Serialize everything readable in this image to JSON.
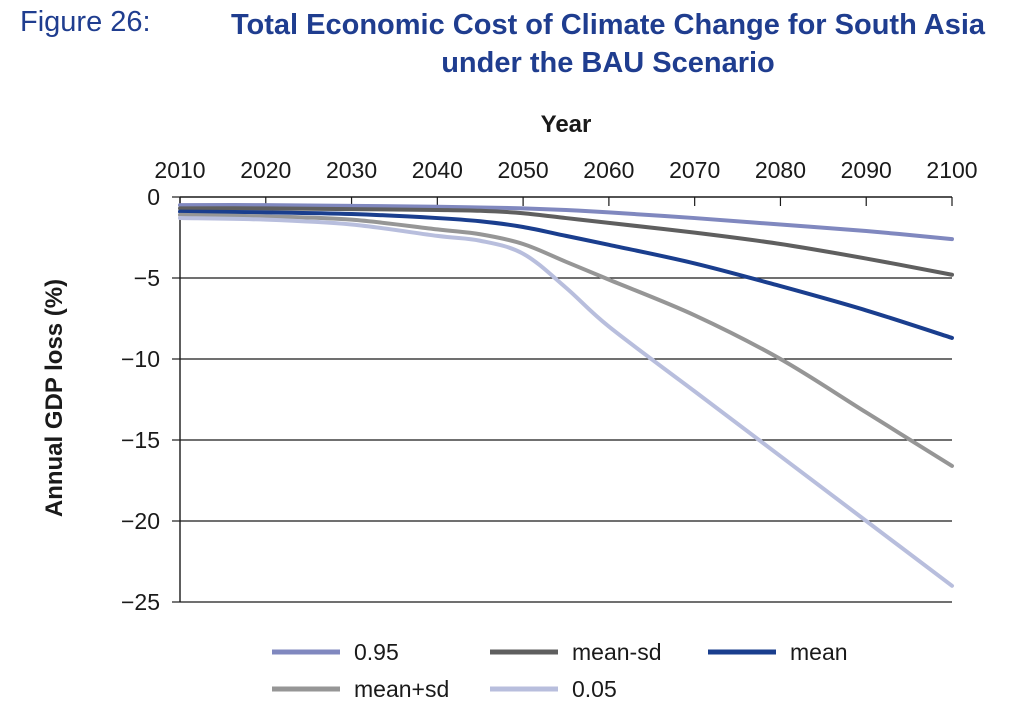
{
  "figure": {
    "label": "Figure 26:",
    "title_line1": "Total Economic Cost of Climate Change for South Asia",
    "title_line2": "under the BAU Scenario"
  },
  "chart_data": {
    "type": "line",
    "xlabel": "Year",
    "ylabel": "Annual GDP loss  (%)",
    "x": [
      2010,
      2020,
      2030,
      2040,
      2045,
      2050,
      2055,
      2060,
      2070,
      2080,
      2090,
      2100
    ],
    "xlim": [
      2010,
      2100
    ],
    "ylim": [
      -25,
      0
    ],
    "xticks": [
      2010,
      2020,
      2030,
      2040,
      2050,
      2060,
      2070,
      2080,
      2090,
      2100
    ],
    "yticks": [
      0,
      -5,
      -10,
      -15,
      -20,
      -25
    ],
    "ytick_labels": [
      "0",
      "−5",
      "−10",
      "−15",
      "−20",
      "−25"
    ],
    "x_axis_position": "top",
    "grid": "horizontal",
    "legend_position": "bottom",
    "series": [
      {
        "name": "0.95",
        "color": "#8088bf",
        "values": [
          -0.5,
          -0.5,
          -0.55,
          -0.6,
          -0.65,
          -0.7,
          -0.8,
          -0.95,
          -1.3,
          -1.7,
          -2.1,
          -2.6
        ]
      },
      {
        "name": "mean-sd",
        "color": "#5f5f5f",
        "values": [
          -0.7,
          -0.7,
          -0.75,
          -0.8,
          -0.85,
          -1.0,
          -1.3,
          -1.6,
          -2.2,
          -2.9,
          -3.8,
          -4.8
        ]
      },
      {
        "name": "mean",
        "color": "#1a3e8e",
        "values": [
          -0.9,
          -0.95,
          -1.05,
          -1.3,
          -1.5,
          -1.85,
          -2.4,
          -2.95,
          -4.1,
          -5.5,
          -7.0,
          -8.7
        ]
      },
      {
        "name": "mean+sd",
        "color": "#969696",
        "values": [
          -1.1,
          -1.2,
          -1.4,
          -2.0,
          -2.3,
          -2.9,
          -4.0,
          -5.1,
          -7.3,
          -10.0,
          -13.3,
          -16.6
        ]
      },
      {
        "name": "0.05",
        "color": "#b8bedd",
        "values": [
          -1.3,
          -1.4,
          -1.7,
          -2.4,
          -2.7,
          -3.5,
          -5.6,
          -8.0,
          -12.0,
          -16.0,
          -20.0,
          -24.0
        ]
      }
    ]
  }
}
